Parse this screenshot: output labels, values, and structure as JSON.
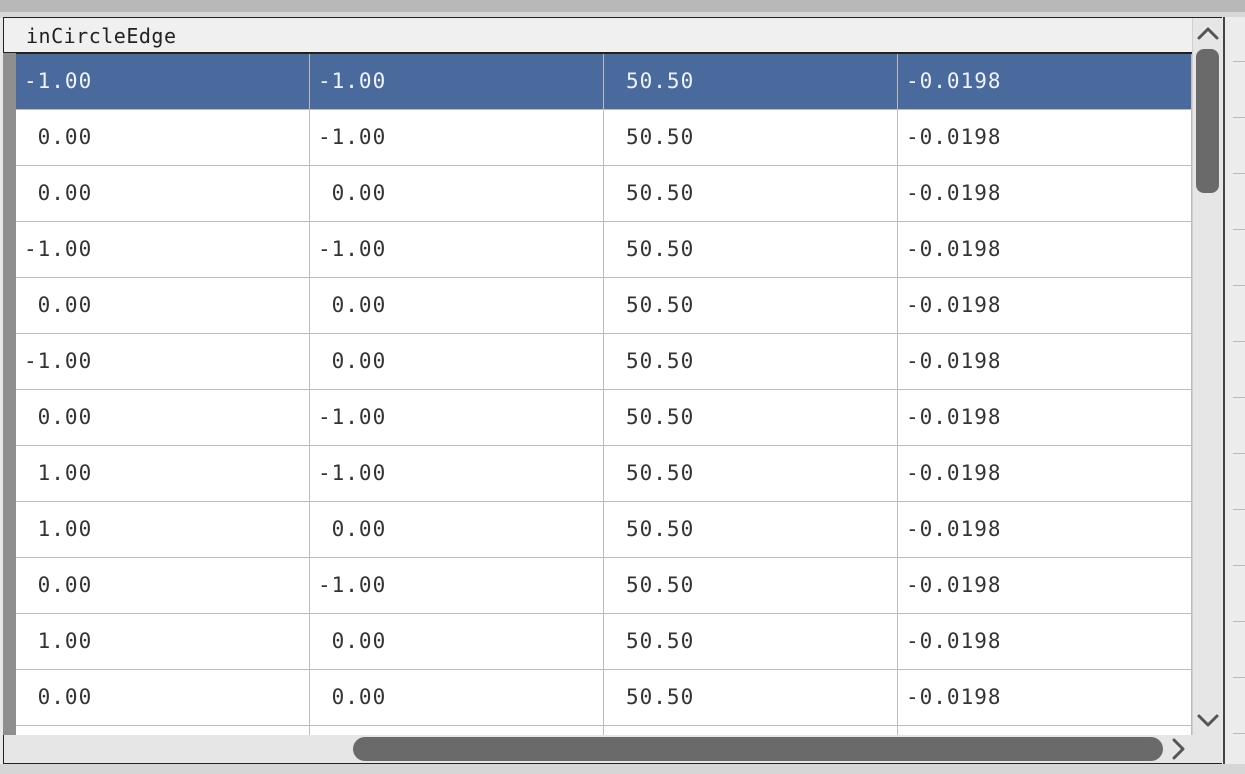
{
  "window": {
    "header_title": "inCircleEdge"
  },
  "table": {
    "selected_row": 0,
    "rows": [
      [
        "-1.00",
        "-1.00",
        "50.50",
        "-0.0198"
      ],
      [
        " 0.00",
        "-1.00",
        "50.50",
        "-0.0198"
      ],
      [
        " 0.00",
        " 0.00",
        "50.50",
        "-0.0198"
      ],
      [
        "-1.00",
        "-1.00",
        "50.50",
        "-0.0198"
      ],
      [
        " 0.00",
        " 0.00",
        "50.50",
        "-0.0198"
      ],
      [
        "-1.00",
        " 0.00",
        "50.50",
        "-0.0198"
      ],
      [
        " 0.00",
        "-1.00",
        "50.50",
        "-0.0198"
      ],
      [
        " 1.00",
        "-1.00",
        "50.50",
        "-0.0198"
      ],
      [
        " 1.00",
        " 0.00",
        "50.50",
        "-0.0198"
      ],
      [
        " 0.00",
        "-1.00",
        "50.50",
        "-0.0198"
      ],
      [
        " 1.00",
        " 0.00",
        "50.50",
        "-0.0198"
      ],
      [
        " 0.00",
        " 0.00",
        "50.50",
        "-0.0198"
      ],
      [
        "",
        "",
        "",
        ""
      ]
    ]
  },
  "colors": {
    "selection": "#4a6a9d",
    "scroll_thumb": "#6a6a6a"
  },
  "icons": {
    "scroll_up": "chevron-up-icon",
    "scroll_down": "chevron-down-icon",
    "scroll_right": "chevron-right-icon"
  }
}
